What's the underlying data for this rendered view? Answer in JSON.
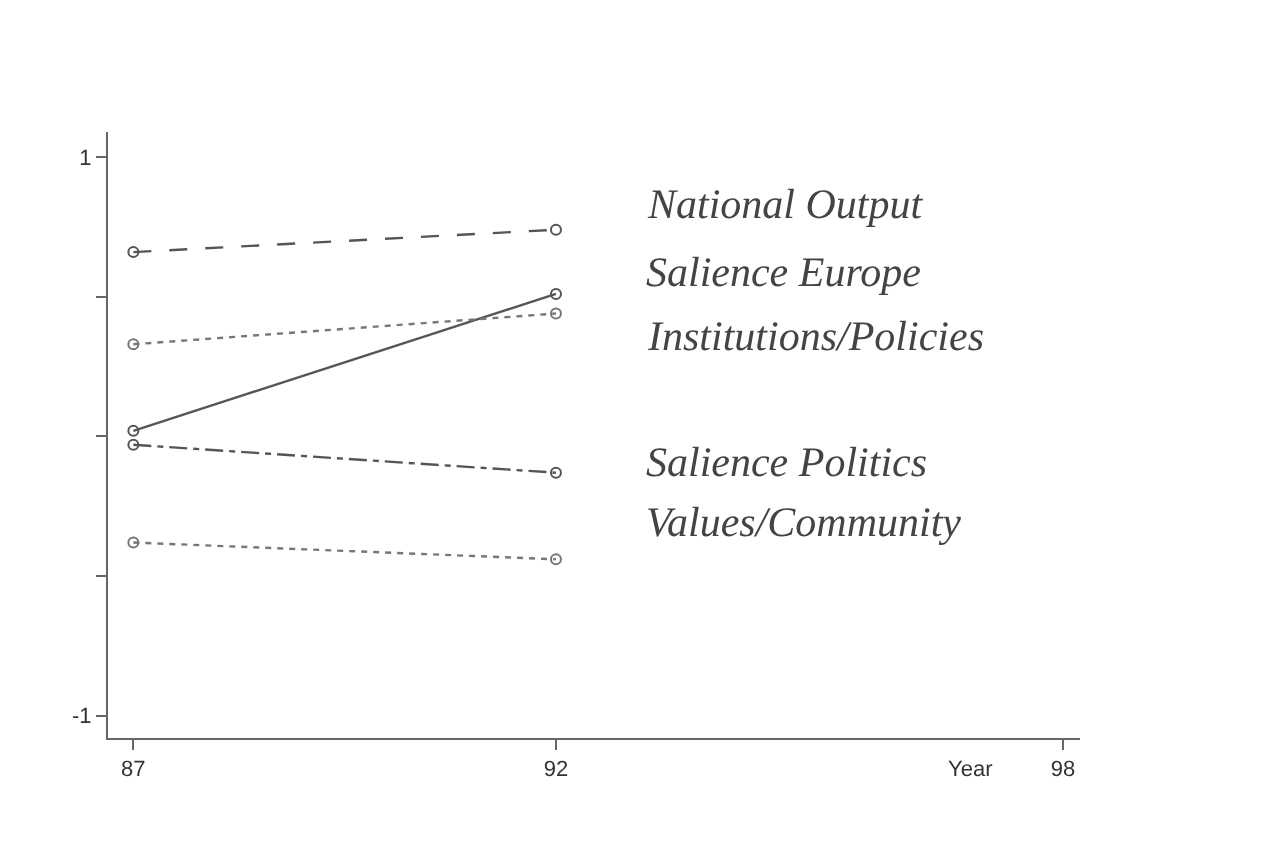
{
  "chart_data": {
    "type": "line",
    "xlabel": "Year",
    "x": [
      87,
      92
    ],
    "series": [
      {
        "name": "National Output",
        "color": "#555555",
        "values": [
          0.66,
          0.74
        ],
        "line_style": "dashed"
      },
      {
        "name": "Salience Europe",
        "color": "#555555",
        "values": [
          0.02,
          0.51
        ],
        "line_style": "solid"
      },
      {
        "name": "Institutions/Policies",
        "color": "#777777",
        "values": [
          0.33,
          0.44
        ],
        "line_style": "dotted"
      },
      {
        "name": "Salience Politics",
        "color": "#555555",
        "values": [
          -0.03,
          -0.13
        ],
        "line_style": "dashdot"
      },
      {
        "name": "Values/Community",
        "color": "#777777",
        "values": [
          -0.38,
          -0.44
        ],
        "line_style": "dotted"
      }
    ],
    "xlim": [
      86.7,
      98.2
    ],
    "xticks": [
      87,
      92,
      98
    ],
    "ylim": [
      -1.08,
      1.09
    ],
    "yticks": [
      1,
      {
        "value": 0.5,
        "label": null
      },
      {
        "value": 0,
        "label": null
      },
      {
        "value": -0.5,
        "label": null
      },
      -1
    ],
    "marker": "circle",
    "legend": false
  }
}
